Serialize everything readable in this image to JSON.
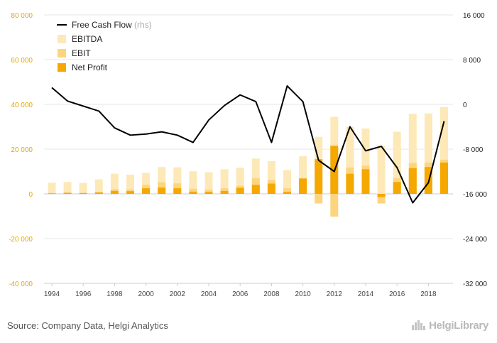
{
  "source_text": "Source: Company Data, Helgi Analytics",
  "brand": {
    "text": "HelgiLibrary"
  },
  "colors": {
    "ebitda": "#fde9b8",
    "ebit": "#fdd57e",
    "net_profit": "#f5a800",
    "fcf": "#000000",
    "left_axis": "#e8a800"
  },
  "chart_data": {
    "type": "bar",
    "years": [
      1994,
      1995,
      1996,
      1997,
      1998,
      1999,
      2000,
      2001,
      2002,
      2003,
      2004,
      2005,
      2006,
      2007,
      2008,
      2009,
      2010,
      2011,
      2012,
      2013,
      2014,
      2015,
      2016,
      2017,
      2018,
      2019
    ],
    "x_tick_labels": [
      "1994",
      "1996",
      "1998",
      "2000",
      "2002",
      "2004",
      "2006",
      "2008",
      "2010",
      "2012",
      "2014",
      "2016",
      "2018"
    ],
    "y_left": {
      "min": -40000,
      "max": 80000,
      "ticks": [
        80000,
        60000,
        40000,
        20000,
        0,
        -20000,
        -40000
      ],
      "tick_labels": [
        "80 000",
        "60 000",
        "40 000",
        "20 000",
        "0",
        "-20 000",
        "-40 000"
      ]
    },
    "y_right": {
      "min": -32000,
      "max": 16000,
      "ticks": [
        16000,
        8000,
        0,
        -8000,
        -16000,
        -24000,
        -32000
      ],
      "tick_labels": [
        "16 000",
        "8 000",
        "0",
        "-8 000",
        "-16 000",
        "-24 000",
        "-32 000"
      ]
    },
    "series": [
      {
        "name": "EBITDA",
        "axis": "left",
        "kind": "bar",
        "values": [
          5000,
          5300,
          4900,
          6500,
          9000,
          8600,
          9400,
          12000,
          11900,
          10100,
          9700,
          11000,
          11700,
          15800,
          14600,
          10600,
          16800,
          25500,
          34500,
          30000,
          29200,
          21500,
          27800,
          35800,
          36000,
          38800
        ]
      },
      {
        "name": "EBIT",
        "axis": "left",
        "kind": "bar",
        "values": [
          400,
          700,
          500,
          900,
          2100,
          2000,
          4000,
          5200,
          4700,
          2300,
          1900,
          2500,
          3600,
          7000,
          6200,
          2500,
          6800,
          -4300,
          -10200,
          11800,
          12600,
          -4300,
          7000,
          13900,
          14000,
          15300
        ]
      },
      {
        "name": "Net Profit",
        "axis": "left",
        "kind": "bar",
        "values": [
          200,
          400,
          300,
          600,
          1300,
          1200,
          2500,
          2800,
          2500,
          1000,
          900,
          1300,
          2700,
          4000,
          4600,
          900,
          6900,
          15500,
          21500,
          9000,
          11000,
          -1400,
          5300,
          11500,
          12000,
          14000
        ]
      },
      {
        "name": "Free Cash Flow",
        "sub": "(rhs)",
        "axis": "right",
        "kind": "line",
        "values": [
          3000,
          600,
          -300,
          -1200,
          -4200,
          -5500,
          -5300,
          -4900,
          -5500,
          -6800,
          -2800,
          -200,
          1700,
          500,
          -6800,
          3300,
          500,
          -10000,
          -12000,
          -4000,
          -8300,
          -7500,
          -11300,
          -17600,
          -14000,
          -3000
        ]
      }
    ]
  }
}
